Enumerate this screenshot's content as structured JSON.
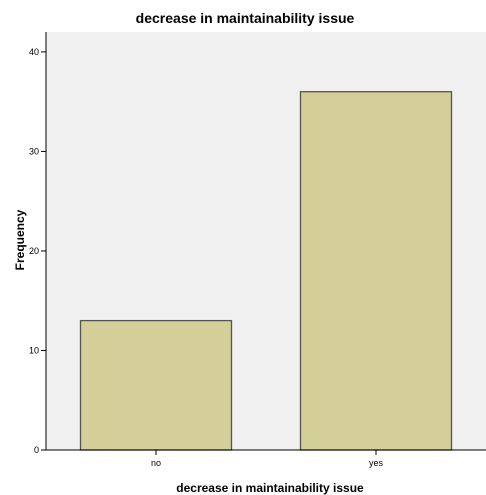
{
  "chart_data": {
    "type": "bar",
    "title": "decrease in maintainability issue",
    "xlabel": "decrease in maintainability issue",
    "ylabel": "Frequency",
    "categories": [
      "no",
      "yes"
    ],
    "values": [
      13,
      36
    ],
    "ylim": [
      0,
      42
    ],
    "y_ticks": [
      0,
      10,
      20,
      30,
      40
    ],
    "grid": false,
    "legend": "none",
    "colors": {
      "bar_fill": "#d4cf98",
      "bar_stroke": "#545454",
      "plot_background": "#f0f0f0",
      "axis": "#000000"
    }
  }
}
